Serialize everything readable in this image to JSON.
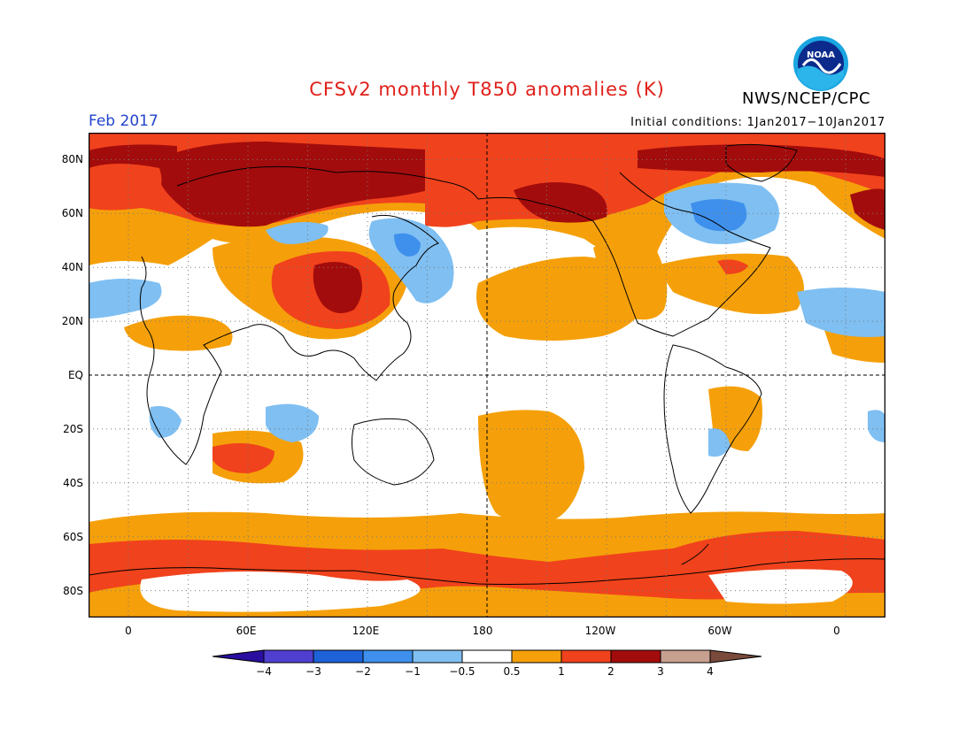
{
  "header": {
    "title": "CFSv2 monthly T850 anomalies (K)",
    "agency": "NWS/NCEP/CPC",
    "logo_text": "NOAA",
    "valid_month": "Feb 2017",
    "initial_conditions": "Initial conditions: 1Jan2017−10Jan2017"
  },
  "map": {
    "projection": "equirectangular",
    "lon_range": [
      -20,
      380
    ],
    "lat_range": [
      -90,
      90
    ],
    "lat_labels": [
      "80N",
      "60N",
      "40N",
      "20N",
      "EQ",
      "20S",
      "40S",
      "60S",
      "80S"
    ],
    "lon_labels": [
      "0",
      "60E",
      "120E",
      "180",
      "120W",
      "60W",
      "0"
    ],
    "grid": "dotted",
    "reference_lines": [
      "equator",
      "dateline"
    ]
  },
  "colorbar": {
    "levels": [
      "−4",
      "−3",
      "−2",
      "−1",
      "−0.5",
      "0.5",
      "1",
      "2",
      "3",
      "4"
    ],
    "colors": [
      "#2a0ea0",
      "#4f3fd0",
      "#1e62d8",
      "#3e90ec",
      "#7fbff2",
      "#ffffff",
      "#f5a00a",
      "#f0421c",
      "#a30c0c",
      "#c7a08f",
      "#7a4a3c"
    ]
  }
}
